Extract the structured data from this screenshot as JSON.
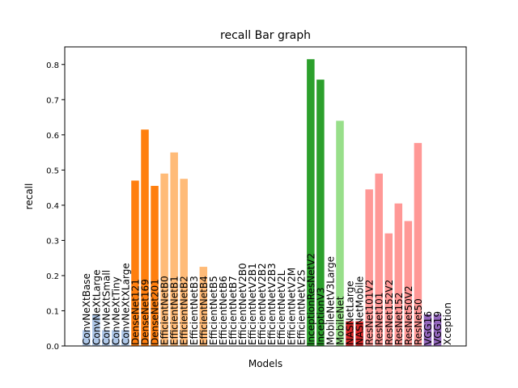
{
  "chart_data": {
    "type": "bar",
    "title": "recall Bar graph",
    "xlabel": "Models",
    "ylabel": "recall",
    "ylim": [
      0,
      0.85
    ],
    "yticks": [
      "0.0",
      "0.1",
      "0.2",
      "0.3",
      "0.4",
      "0.5",
      "0.6",
      "0.7",
      "0.8"
    ],
    "grid": false,
    "categories": [
      "ConvNeXtBase",
      "ConvNeXtLarge",
      "ConvNeXtSmall",
      "ConvNeXtTiny",
      "ConvNeXtXLarge",
      "DenseNet121",
      "DenseNet169",
      "DenseNet201",
      "EfficientNetB0",
      "EfficientNetB1",
      "EfficientNetB2",
      "EfficientNetB3",
      "EfficientNetB4",
      "EfficientNetB5",
      "EfficientNetB6",
      "EfficientNetB7",
      "EfficientNetV2B0",
      "EfficientNetV2B1",
      "EfficientNetV2B2",
      "EfficientNetV2B3",
      "EfficientNetV2L",
      "EfficientNetV2M",
      "EfficientNetV2S",
      "InceptionResNetV2",
      "InceptionV3",
      "MobileNetV3Large",
      "MobileNet",
      "NASNetLarge",
      "NASNetMobile",
      "ResNet101V2",
      "ResNet101",
      "ResNet152V2",
      "ResNet152",
      "ResNet50V2",
      "ResNet50",
      "VGG16",
      "VGG19",
      "Xception"
    ],
    "values": [
      0.045,
      0.09,
      0.045,
      0.045,
      0.045,
      0.47,
      0.615,
      0.455,
      0.49,
      0.55,
      0.475,
      0.0,
      0.225,
      0.0,
      0.0,
      0.0,
      0.0,
      0.0,
      0.0,
      0.0,
      0.0,
      0.0,
      0.0,
      0.815,
      0.757,
      0.0,
      0.64,
      0.07,
      0.07,
      0.445,
      0.49,
      0.32,
      0.405,
      0.355,
      0.577,
      0.09,
      0.09,
      0.0
    ],
    "colors": [
      "#aec7e8",
      "#aec7e8",
      "#aec7e8",
      "#aec7e8",
      "#aec7e8",
      "#ff7f0e",
      "#ff7f0e",
      "#ff7f0e",
      "#ffbb78",
      "#ffbb78",
      "#ffbb78",
      "#ffbb78",
      "#ffbb78",
      "#ffbb78",
      "#ffbb78",
      "#ffbb78",
      "#ffbb78",
      "#ffbb78",
      "#ffbb78",
      "#ffbb78",
      "#ffbb78",
      "#ffbb78",
      "#ffbb78",
      "#2ca02c",
      "#2ca02c",
      "#98df8a",
      "#98df8a",
      "#d62728",
      "#d62728",
      "#ff9896",
      "#ff9896",
      "#ff9896",
      "#ff9896",
      "#ff9896",
      "#ff9896",
      "#9467bd",
      "#9467bd",
      "#9467bd"
    ]
  }
}
